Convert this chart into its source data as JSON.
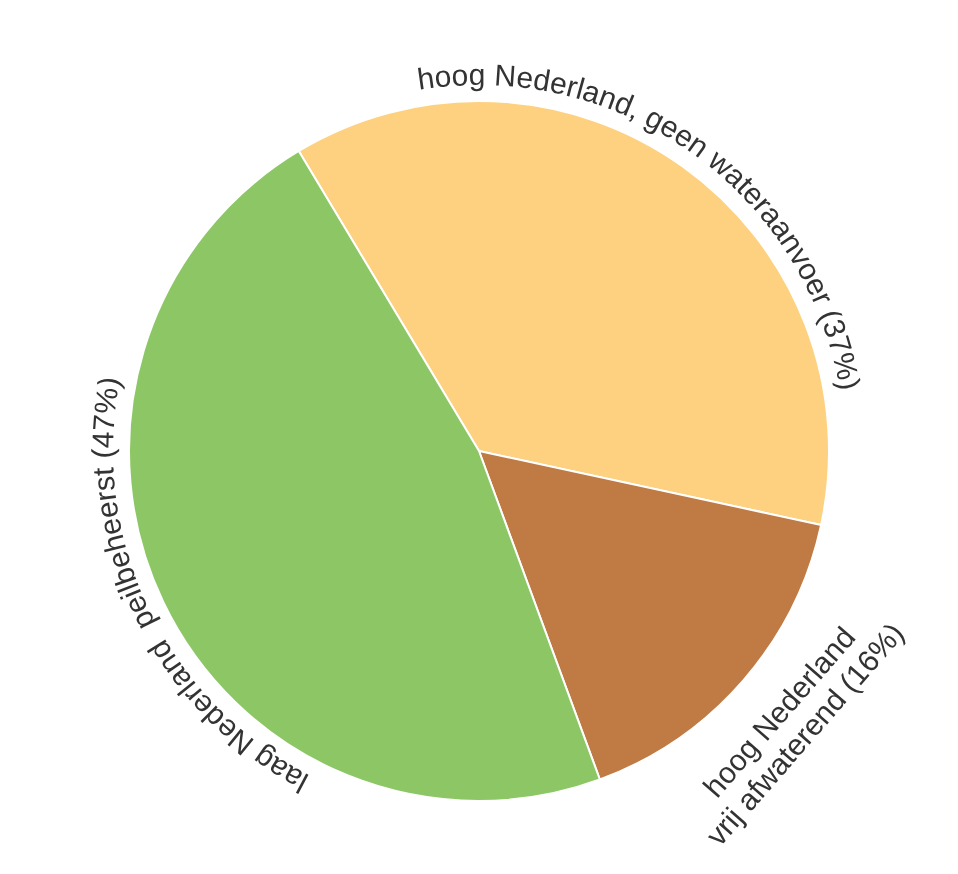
{
  "chart_data": {
    "type": "pie",
    "categories": [
      "hoog Nederland, geen wateraanvoer",
      "hoog Nederland\nvrij afwaterend",
      "laag Nederland  peilbeheerst"
    ],
    "values": [
      37,
      16,
      47
    ],
    "colors": [
      "#fdd17f",
      "#c07a43",
      "#8dc765"
    ],
    "value_labels": [
      "(37%)",
      "(16%)",
      "(47%)"
    ]
  }
}
